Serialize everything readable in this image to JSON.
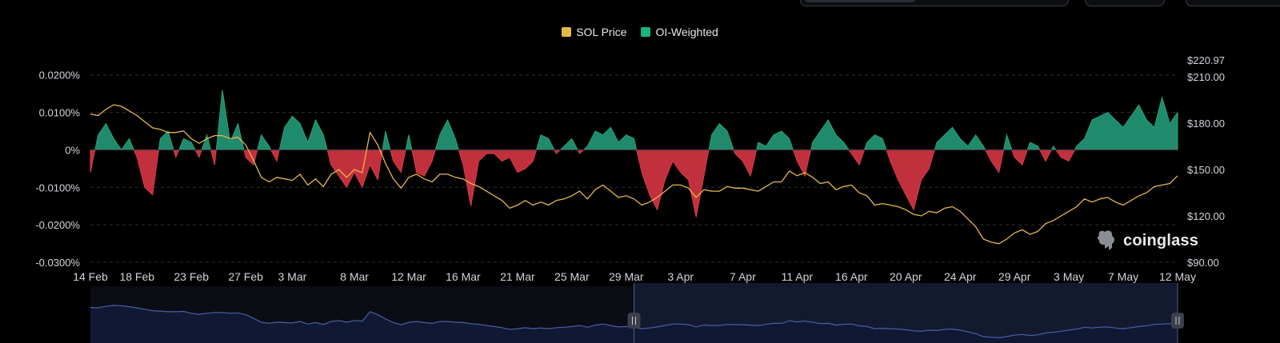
{
  "legend": {
    "price_label": "SOL Price",
    "oi_label": "OI-Weighted"
  },
  "watermark": {
    "text": "coinglass"
  },
  "colors": {
    "price": "#e6b84a",
    "positive": "#1f8a6c",
    "negative": "#c2303d",
    "grid": "#2b2f38",
    "axis_text": "#d1d4dc",
    "navigator_line": "#4a5ea8",
    "navigator_fill": "#131a30"
  },
  "chart_data": {
    "type": "area",
    "left_axis": {
      "label": "",
      "range": [
        -0.03,
        0.024
      ],
      "ticks": [
        {
          "value": 0.02,
          "label": "0.0200%"
        },
        {
          "value": 0.01,
          "label": "0.0100%"
        },
        {
          "value": 0,
          "label": "0%"
        },
        {
          "value": -0.01,
          "label": "-0.0100%"
        },
        {
          "value": -0.02,
          "label": "-0.0200%"
        },
        {
          "value": -0.03,
          "label": "-0.0300%"
        }
      ]
    },
    "right_axis": {
      "label": "",
      "range": [
        90,
        220.97
      ],
      "ticks": [
        {
          "value": 220.97,
          "label": "$220.97"
        },
        {
          "value": 210,
          "label": "$210.00"
        },
        {
          "value": 180,
          "label": "$180.00"
        },
        {
          "value": 150,
          "label": "$150.00"
        },
        {
          "value": 120,
          "label": "$120.00"
        },
        {
          "value": 90,
          "label": "$90.00"
        }
      ]
    },
    "x_ticks": [
      "14 Feb",
      "18 Feb",
      "23 Feb",
      "27 Feb",
      "3 Mar",
      "8 Mar",
      "12 Mar",
      "16 Mar",
      "21 Mar",
      "25 Mar",
      "29 Mar",
      "3 Apr",
      "7 Apr",
      "11 Apr",
      "16 Apr",
      "20 Apr",
      "24 Apr",
      "29 Apr",
      "3 May",
      "7 May",
      "12 May"
    ],
    "grid": true,
    "legend_position": "top-center",
    "series": [
      {
        "name": "OI-Weighted",
        "unit": "%",
        "style": "area-split",
        "points": [
          [
            0,
            -0.006
          ],
          [
            1,
            0.004
          ],
          [
            2,
            0.007
          ],
          [
            3,
            0.003
          ],
          [
            4,
            0.0
          ],
          [
            5,
            0.003
          ],
          [
            6,
            -0.002
          ],
          [
            7,
            -0.01
          ],
          [
            8,
            -0.012
          ],
          [
            9,
            0.003
          ],
          [
            10,
            0.005
          ],
          [
            11,
            -0.002
          ],
          [
            12,
            0.003
          ],
          [
            13,
            0.002
          ],
          [
            14,
            -0.002
          ],
          [
            15,
            0.004
          ],
          [
            16,
            -0.004
          ],
          [
            17,
            0.016
          ],
          [
            18,
            0.002
          ],
          [
            19,
            0.007
          ],
          [
            20,
            -0.002
          ],
          [
            21,
            -0.004
          ],
          [
            22,
            0.004
          ],
          [
            23,
            0.001
          ],
          [
            24,
            -0.003
          ],
          [
            25,
            0.006
          ],
          [
            26,
            0.009
          ],
          [
            27,
            0.007
          ],
          [
            28,
            0.002
          ],
          [
            29,
            0.008
          ],
          [
            30,
            0.004
          ],
          [
            31,
            -0.004
          ],
          [
            32,
            -0.007
          ],
          [
            33,
            -0.01
          ],
          [
            34,
            -0.006
          ],
          [
            35,
            -0.01
          ],
          [
            36,
            -0.004
          ],
          [
            37,
            -0.008
          ],
          [
            38,
            0.005
          ],
          [
            39,
            -0.003
          ],
          [
            40,
            -0.006
          ],
          [
            41,
            0.004
          ],
          [
            42,
            -0.006
          ],
          [
            43,
            -0.007
          ],
          [
            44,
            -0.003
          ],
          [
            45,
            0.004
          ],
          [
            46,
            0.008
          ],
          [
            47,
            0.003
          ],
          [
            48,
            -0.004
          ],
          [
            49,
            -0.015
          ],
          [
            50,
            -0.003
          ],
          [
            51,
            -0.001
          ],
          [
            52,
            -0.001
          ],
          [
            53,
            -0.003
          ],
          [
            54,
            -0.002
          ],
          [
            55,
            -0.006
          ],
          [
            56,
            -0.005
          ],
          [
            57,
            -0.003
          ],
          [
            58,
            0.004
          ],
          [
            59,
            0.003
          ],
          [
            60,
            -0.001
          ],
          [
            61,
            0.001
          ],
          [
            62,
            0.003
          ],
          [
            63,
            -0.001
          ],
          [
            64,
            0.001
          ],
          [
            65,
            0.005
          ],
          [
            66,
            0.004
          ],
          [
            67,
            0.006
          ],
          [
            68,
            0.002
          ],
          [
            69,
            0.004
          ],
          [
            70,
            0.003
          ],
          [
            71,
            -0.006
          ],
          [
            72,
            -0.012
          ],
          [
            73,
            -0.016
          ],
          [
            74,
            -0.008
          ],
          [
            75,
            -0.003
          ],
          [
            76,
            -0.006
          ],
          [
            77,
            -0.008
          ],
          [
            78,
            -0.018
          ],
          [
            79,
            -0.007
          ],
          [
            80,
            0.004
          ],
          [
            81,
            0.007
          ],
          [
            82,
            0.005
          ],
          [
            83,
            -0.001
          ],
          [
            84,
            -0.003
          ],
          [
            85,
            -0.007
          ],
          [
            86,
            0.002
          ],
          [
            87,
            0.001
          ],
          [
            88,
            0.004
          ],
          [
            89,
            0.005
          ],
          [
            90,
            0.003
          ],
          [
            91,
            -0.003
          ],
          [
            92,
            -0.007
          ],
          [
            93,
            0.002
          ],
          [
            94,
            0.005
          ],
          [
            95,
            0.008
          ],
          [
            96,
            0.004
          ],
          [
            97,
            0.002
          ],
          [
            98,
            -0.001
          ],
          [
            99,
            -0.004
          ],
          [
            100,
            0.002
          ],
          [
            101,
            0.004
          ],
          [
            102,
            0.003
          ],
          [
            103,
            -0.003
          ],
          [
            104,
            -0.008
          ],
          [
            105,
            -0.012
          ],
          [
            106,
            -0.016
          ],
          [
            107,
            -0.008
          ],
          [
            108,
            -0.005
          ],
          [
            109,
            0.002
          ],
          [
            110,
            0.004
          ],
          [
            111,
            0.006
          ],
          [
            112,
            0.003
          ],
          [
            113,
            0.001
          ],
          [
            114,
            0.004
          ],
          [
            115,
            0.001
          ],
          [
            116,
            -0.003
          ],
          [
            117,
            -0.006
          ],
          [
            118,
            0.004
          ],
          [
            119,
            -0.002
          ],
          [
            120,
            -0.004
          ],
          [
            121,
            0.002
          ],
          [
            122,
            0.001
          ],
          [
            123,
            -0.003
          ],
          [
            124,
            0.001
          ],
          [
            125,
            -0.002
          ],
          [
            126,
            -0.003
          ],
          [
            127,
            0.001
          ],
          [
            128,
            0.003
          ],
          [
            129,
            0.008
          ],
          [
            130,
            0.009
          ],
          [
            131,
            0.01
          ],
          [
            132,
            0.008
          ],
          [
            133,
            0.006
          ],
          [
            134,
            0.009
          ],
          [
            135,
            0.012
          ],
          [
            136,
            0.008
          ],
          [
            137,
            0.006
          ],
          [
            138,
            0.014
          ],
          [
            139,
            0.007
          ],
          [
            140,
            0.01
          ]
        ]
      },
      {
        "name": "SOL Price",
        "unit": "$",
        "style": "line",
        "points": [
          [
            0,
            186
          ],
          [
            1,
            185
          ],
          [
            2,
            189
          ],
          [
            3,
            192
          ],
          [
            4,
            191
          ],
          [
            5,
            188
          ],
          [
            6,
            185
          ],
          [
            7,
            181
          ],
          [
            8,
            177
          ],
          [
            9,
            176
          ],
          [
            10,
            174
          ],
          [
            11,
            174
          ],
          [
            12,
            175
          ],
          [
            13,
            170
          ],
          [
            14,
            167
          ],
          [
            15,
            170
          ],
          [
            16,
            172
          ],
          [
            17,
            172
          ],
          [
            18,
            170
          ],
          [
            19,
            171
          ],
          [
            20,
            166
          ],
          [
            21,
            156
          ],
          [
            22,
            145
          ],
          [
            23,
            142
          ],
          [
            24,
            145
          ],
          [
            25,
            144
          ],
          [
            26,
            143
          ],
          [
            27,
            147
          ],
          [
            28,
            140
          ],
          [
            29,
            144
          ],
          [
            30,
            139
          ],
          [
            31,
            147
          ],
          [
            32,
            150
          ],
          [
            33,
            145
          ],
          [
            34,
            150
          ],
          [
            35,
            148
          ],
          [
            36,
            174
          ],
          [
            37,
            166
          ],
          [
            38,
            154
          ],
          [
            39,
            144
          ],
          [
            40,
            138
          ],
          [
            41,
            145
          ],
          [
            42,
            147
          ],
          [
            43,
            144
          ],
          [
            44,
            142
          ],
          [
            45,
            147
          ],
          [
            46,
            147
          ],
          [
            47,
            145
          ],
          [
            48,
            144
          ],
          [
            49,
            141
          ],
          [
            50,
            139
          ],
          [
            51,
            136
          ],
          [
            52,
            133
          ],
          [
            53,
            130
          ],
          [
            54,
            125
          ],
          [
            55,
            127
          ],
          [
            56,
            130
          ],
          [
            57,
            127
          ],
          [
            58,
            129
          ],
          [
            59,
            127
          ],
          [
            60,
            130
          ],
          [
            61,
            131
          ],
          [
            62,
            133
          ],
          [
            63,
            136
          ],
          [
            64,
            131
          ],
          [
            65,
            137
          ],
          [
            66,
            140
          ],
          [
            67,
            136
          ],
          [
            68,
            132
          ],
          [
            69,
            133
          ],
          [
            70,
            131
          ],
          [
            71,
            127
          ],
          [
            72,
            129
          ],
          [
            73,
            132
          ],
          [
            74,
            136
          ],
          [
            75,
            140
          ],
          [
            76,
            140
          ],
          [
            77,
            138
          ],
          [
            78,
            132
          ],
          [
            79,
            137
          ],
          [
            80,
            136
          ],
          [
            81,
            136
          ],
          [
            82,
            139
          ],
          [
            83,
            138
          ],
          [
            84,
            138
          ],
          [
            85,
            137
          ],
          [
            86,
            136
          ],
          [
            87,
            139
          ],
          [
            88,
            142
          ],
          [
            89,
            142
          ],
          [
            90,
            149
          ],
          [
            91,
            146
          ],
          [
            92,
            148
          ],
          [
            93,
            145
          ],
          [
            94,
            141
          ],
          [
            95,
            142
          ],
          [
            96,
            137
          ],
          [
            97,
            139
          ],
          [
            98,
            140
          ],
          [
            99,
            135
          ],
          [
            100,
            133
          ],
          [
            101,
            127
          ],
          [
            102,
            128
          ],
          [
            103,
            127
          ],
          [
            104,
            126
          ],
          [
            105,
            124
          ],
          [
            106,
            121
          ],
          [
            107,
            120
          ],
          [
            108,
            123
          ],
          [
            109,
            122
          ],
          [
            110,
            125
          ],
          [
            111,
            126
          ],
          [
            112,
            123
          ],
          [
            113,
            118
          ],
          [
            114,
            113
          ],
          [
            115,
            105
          ],
          [
            116,
            103
          ],
          [
            117,
            102
          ],
          [
            118,
            105
          ],
          [
            119,
            109
          ],
          [
            120,
            111
          ],
          [
            121,
            108
          ],
          [
            122,
            110
          ],
          [
            123,
            115
          ],
          [
            124,
            117
          ],
          [
            125,
            120
          ],
          [
            126,
            123
          ],
          [
            127,
            126
          ],
          [
            128,
            131
          ],
          [
            129,
            129
          ],
          [
            130,
            131
          ],
          [
            131,
            132
          ],
          [
            132,
            129
          ],
          [
            133,
            127
          ],
          [
            134,
            130
          ],
          [
            135,
            133
          ],
          [
            136,
            135
          ],
          [
            137,
            139
          ],
          [
            138,
            140
          ],
          [
            139,
            141
          ],
          [
            140,
            146
          ]
        ]
      }
    ],
    "x_tick_positions": [
      0,
      6,
      13,
      20,
      26,
      34,
      41,
      48,
      55,
      62,
      69,
      76,
      84,
      91,
      98,
      105,
      112,
      119,
      126,
      133,
      140
    ]
  }
}
